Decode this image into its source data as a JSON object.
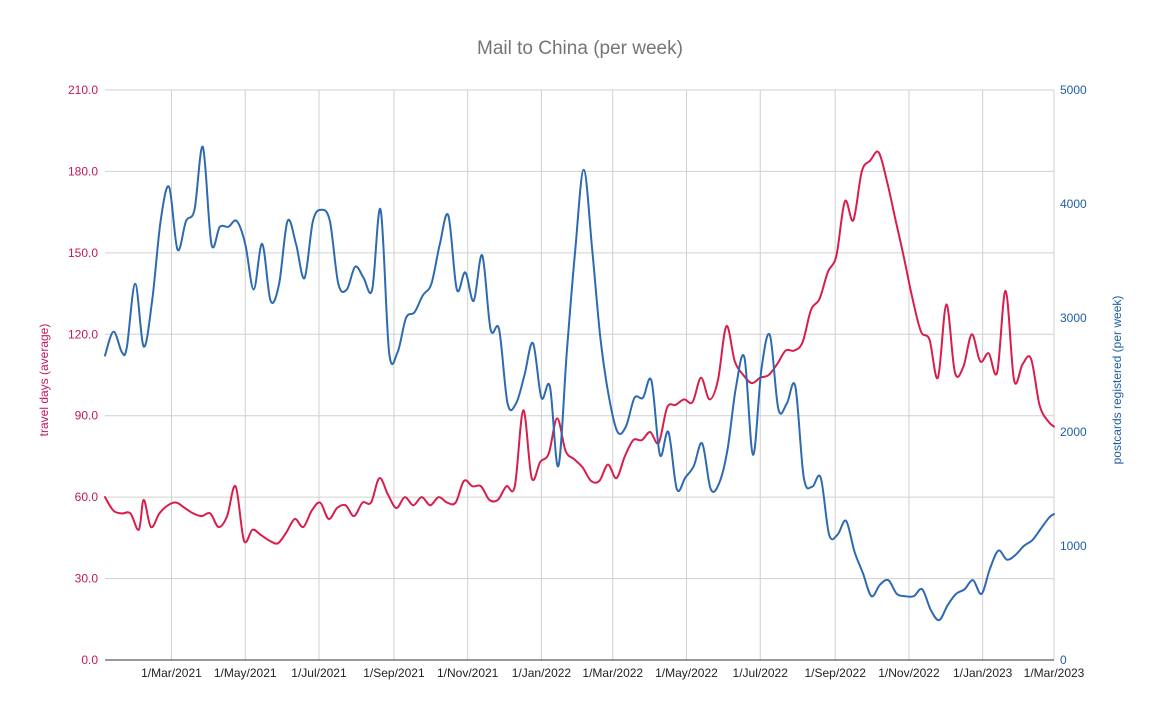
{
  "chart_data": {
    "type": "line",
    "title": "Mail to China (per week)",
    "y_left_label": "travel days (average)",
    "y_right_label": "postcards registered (per week)",
    "y_left_range": [
      0,
      210
    ],
    "y_right_range": [
      0,
      5000
    ],
    "y_left_ticks": [
      "0.0",
      "30.0",
      "60.0",
      "90.0",
      "120.0",
      "150.0",
      "180.0",
      "210.0"
    ],
    "y_right_ticks": [
      "0",
      "1000",
      "2000",
      "3000",
      "4000",
      "5000"
    ],
    "x_ticks": [
      "1/Mar/2021",
      "1/May/2021",
      "1/Jul/2021",
      "1/Sep/2021",
      "1/Nov/2021",
      "1/Jan/2022",
      "1/Mar/2022",
      "1/May/2022",
      "1/Jul/2022",
      "1/Sep/2022",
      "1/Nov/2022",
      "1/Jan/2023",
      "1/Mar/2023"
    ],
    "x_range": [
      "2021-01-05",
      "2023-03-01"
    ],
    "grid": true,
    "legend": "none",
    "colors": {
      "travel_days": "#d81e4c",
      "postcards": "#2e6ab0"
    },
    "series": [
      {
        "axis": "left",
        "color": "#d81e4c",
        "points": [
          [
            "2021-01-05",
            60
          ],
          [
            "2021-01-12",
            55
          ],
          [
            "2021-01-19",
            54
          ],
          [
            "2021-01-26",
            54
          ],
          [
            "2021-02-02",
            48
          ],
          [
            "2021-02-06",
            59
          ],
          [
            "2021-02-12",
            49
          ],
          [
            "2021-02-19",
            54
          ],
          [
            "2021-02-26",
            57
          ],
          [
            "2021-03-05",
            58
          ],
          [
            "2021-03-12",
            56
          ],
          [
            "2021-03-19",
            54
          ],
          [
            "2021-03-26",
            53
          ],
          [
            "2021-04-02",
            54
          ],
          [
            "2021-04-09",
            49
          ],
          [
            "2021-04-16",
            53
          ],
          [
            "2021-04-23",
            64
          ],
          [
            "2021-04-30",
            44
          ],
          [
            "2021-05-07",
            48
          ],
          [
            "2021-05-14",
            46
          ],
          [
            "2021-05-21",
            44
          ],
          [
            "2021-05-28",
            43
          ],
          [
            "2021-06-04",
            47
          ],
          [
            "2021-06-11",
            52
          ],
          [
            "2021-06-18",
            49
          ],
          [
            "2021-06-25",
            55
          ],
          [
            "2021-07-02",
            58
          ],
          [
            "2021-07-09",
            52
          ],
          [
            "2021-07-16",
            56
          ],
          [
            "2021-07-23",
            57
          ],
          [
            "2021-07-30",
            53
          ],
          [
            "2021-08-06",
            58
          ],
          [
            "2021-08-13",
            58
          ],
          [
            "2021-08-20",
            67
          ],
          [
            "2021-08-27",
            61
          ],
          [
            "2021-09-03",
            56
          ],
          [
            "2021-09-10",
            60
          ],
          [
            "2021-09-17",
            57
          ],
          [
            "2021-09-24",
            60
          ],
          [
            "2021-10-01",
            57
          ],
          [
            "2021-10-08",
            60
          ],
          [
            "2021-10-15",
            58
          ],
          [
            "2021-10-22",
            58
          ],
          [
            "2021-10-29",
            66
          ],
          [
            "2021-11-05",
            64
          ],
          [
            "2021-11-12",
            64
          ],
          [
            "2021-11-19",
            59
          ],
          [
            "2021-11-26",
            59
          ],
          [
            "2021-12-03",
            64
          ],
          [
            "2021-12-10",
            64
          ],
          [
            "2021-12-17",
            92
          ],
          [
            "2021-12-24",
            67
          ],
          [
            "2021-12-31",
            73
          ],
          [
            "2022-01-07",
            76
          ],
          [
            "2022-01-14",
            89
          ],
          [
            "2022-01-21",
            77
          ],
          [
            "2022-01-28",
            74
          ],
          [
            "2022-02-04",
            71
          ],
          [
            "2022-02-11",
            66
          ],
          [
            "2022-02-18",
            66
          ],
          [
            "2022-02-25",
            72
          ],
          [
            "2022-03-04",
            67
          ],
          [
            "2022-03-11",
            75
          ],
          [
            "2022-03-18",
            81
          ],
          [
            "2022-03-25",
            81
          ],
          [
            "2022-04-01",
            84
          ],
          [
            "2022-04-08",
            80
          ],
          [
            "2022-04-15",
            93
          ],
          [
            "2022-04-22",
            94
          ],
          [
            "2022-04-29",
            96
          ],
          [
            "2022-05-06",
            95
          ],
          [
            "2022-05-13",
            104
          ],
          [
            "2022-05-20",
            96
          ],
          [
            "2022-05-27",
            103
          ],
          [
            "2022-06-03",
            123
          ],
          [
            "2022-06-10",
            110
          ],
          [
            "2022-06-17",
            105
          ],
          [
            "2022-06-24",
            102
          ],
          [
            "2022-07-01",
            104
          ],
          [
            "2022-07-08",
            105
          ],
          [
            "2022-07-15",
            109
          ],
          [
            "2022-07-22",
            114
          ],
          [
            "2022-07-29",
            114
          ],
          [
            "2022-08-05",
            117
          ],
          [
            "2022-08-12",
            129
          ],
          [
            "2022-08-19",
            133
          ],
          [
            "2022-08-26",
            143
          ],
          [
            "2022-09-02",
            149
          ],
          [
            "2022-09-09",
            169
          ],
          [
            "2022-09-16",
            162
          ],
          [
            "2022-09-23",
            180
          ],
          [
            "2022-09-30",
            184
          ],
          [
            "2022-10-07",
            187
          ],
          [
            "2022-10-14",
            176
          ],
          [
            "2022-10-21",
            162
          ],
          [
            "2022-10-28",
            148
          ],
          [
            "2022-11-04",
            133
          ],
          [
            "2022-11-11",
            121
          ],
          [
            "2022-11-18",
            118
          ],
          [
            "2022-11-25",
            104
          ],
          [
            "2022-12-02",
            131
          ],
          [
            "2022-12-09",
            106
          ],
          [
            "2022-12-16",
            108
          ],
          [
            "2022-12-23",
            120
          ],
          [
            "2022-12-30",
            110
          ],
          [
            "2023-01-06",
            113
          ],
          [
            "2023-01-13",
            106
          ],
          [
            "2023-01-20",
            136
          ],
          [
            "2023-01-27",
            103
          ],
          [
            "2023-02-03",
            109
          ],
          [
            "2023-02-10",
            111
          ],
          [
            "2023-02-17",
            94
          ],
          [
            "2023-02-24",
            88
          ],
          [
            "2023-03-01",
            86
          ]
        ]
      },
      {
        "axis": "right",
        "color": "#2e6ab0",
        "points": [
          [
            "2021-01-05",
            2670
          ],
          [
            "2021-01-12",
            2880
          ],
          [
            "2021-01-19",
            2700
          ],
          [
            "2021-01-23",
            2740
          ],
          [
            "2021-01-30",
            3300
          ],
          [
            "2021-02-06",
            2750
          ],
          [
            "2021-02-13",
            3150
          ],
          [
            "2021-02-20",
            3850
          ],
          [
            "2021-02-27",
            4150
          ],
          [
            "2021-03-06",
            3600
          ],
          [
            "2021-03-13",
            3850
          ],
          [
            "2021-03-20",
            3950
          ],
          [
            "2021-03-27",
            4500
          ],
          [
            "2021-04-03",
            3650
          ],
          [
            "2021-04-10",
            3800
          ],
          [
            "2021-04-17",
            3800
          ],
          [
            "2021-04-24",
            3850
          ],
          [
            "2021-05-01",
            3650
          ],
          [
            "2021-05-08",
            3250
          ],
          [
            "2021-05-15",
            3650
          ],
          [
            "2021-05-22",
            3150
          ],
          [
            "2021-05-29",
            3300
          ],
          [
            "2021-06-05",
            3850
          ],
          [
            "2021-06-12",
            3650
          ],
          [
            "2021-06-19",
            3350
          ],
          [
            "2021-06-26",
            3850
          ],
          [
            "2021-07-03",
            3950
          ],
          [
            "2021-07-10",
            3850
          ],
          [
            "2021-07-17",
            3300
          ],
          [
            "2021-07-24",
            3250
          ],
          [
            "2021-07-31",
            3450
          ],
          [
            "2021-08-07",
            3350
          ],
          [
            "2021-08-14",
            3250
          ],
          [
            "2021-08-21",
            3950
          ],
          [
            "2021-08-28",
            2700
          ],
          [
            "2021-09-04",
            2700
          ],
          [
            "2021-09-11",
            3000
          ],
          [
            "2021-09-18",
            3050
          ],
          [
            "2021-09-25",
            3200
          ],
          [
            "2021-10-02",
            3300
          ],
          [
            "2021-10-09",
            3650
          ],
          [
            "2021-10-16",
            3900
          ],
          [
            "2021-10-23",
            3250
          ],
          [
            "2021-10-30",
            3400
          ],
          [
            "2021-11-06",
            3150
          ],
          [
            "2021-11-13",
            3550
          ],
          [
            "2021-11-20",
            2900
          ],
          [
            "2021-11-27",
            2900
          ],
          [
            "2021-12-04",
            2250
          ],
          [
            "2021-12-11",
            2250
          ],
          [
            "2021-12-18",
            2500
          ],
          [
            "2021-12-25",
            2780
          ],
          [
            "2022-01-01",
            2300
          ],
          [
            "2022-01-08",
            2400
          ],
          [
            "2022-01-15",
            1700
          ],
          [
            "2022-01-22",
            2700
          ],
          [
            "2022-01-29",
            3600
          ],
          [
            "2022-02-05",
            4300
          ],
          [
            "2022-02-12",
            3600
          ],
          [
            "2022-02-19",
            2800
          ],
          [
            "2022-02-26",
            2300
          ],
          [
            "2022-03-05",
            2000
          ],
          [
            "2022-03-12",
            2050
          ],
          [
            "2022-03-19",
            2300
          ],
          [
            "2022-03-26",
            2300
          ],
          [
            "2022-04-02",
            2450
          ],
          [
            "2022-04-09",
            1800
          ],
          [
            "2022-04-16",
            2000
          ],
          [
            "2022-04-23",
            1500
          ],
          [
            "2022-04-30",
            1600
          ],
          [
            "2022-05-07",
            1700
          ],
          [
            "2022-05-14",
            1900
          ],
          [
            "2022-05-21",
            1500
          ],
          [
            "2022-05-28",
            1550
          ],
          [
            "2022-06-04",
            1850
          ],
          [
            "2022-06-11",
            2400
          ],
          [
            "2022-06-18",
            2650
          ],
          [
            "2022-06-25",
            1800
          ],
          [
            "2022-07-02",
            2550
          ],
          [
            "2022-07-09",
            2850
          ],
          [
            "2022-07-16",
            2200
          ],
          [
            "2022-07-23",
            2250
          ],
          [
            "2022-07-30",
            2400
          ],
          [
            "2022-08-06",
            1600
          ],
          [
            "2022-08-13",
            1520
          ],
          [
            "2022-08-20",
            1600
          ],
          [
            "2022-08-27",
            1100
          ],
          [
            "2022-09-03",
            1100
          ],
          [
            "2022-09-10",
            1220
          ],
          [
            "2022-09-17",
            950
          ],
          [
            "2022-09-24",
            760
          ],
          [
            "2022-10-01",
            560
          ],
          [
            "2022-10-08",
            660
          ],
          [
            "2022-10-15",
            700
          ],
          [
            "2022-10-22",
            580
          ],
          [
            "2022-10-29",
            560
          ],
          [
            "2022-11-05",
            560
          ],
          [
            "2022-11-12",
            620
          ],
          [
            "2022-11-19",
            440
          ],
          [
            "2022-11-26",
            350
          ],
          [
            "2022-12-03",
            480
          ],
          [
            "2022-12-10",
            580
          ],
          [
            "2022-12-17",
            620
          ],
          [
            "2022-12-24",
            700
          ],
          [
            "2022-12-31",
            580
          ],
          [
            "2023-01-07",
            800
          ],
          [
            "2023-01-14",
            960
          ],
          [
            "2023-01-21",
            880
          ],
          [
            "2023-01-28",
            920
          ],
          [
            "2023-02-04",
            1000
          ],
          [
            "2023-02-11",
            1050
          ],
          [
            "2023-02-18",
            1150
          ],
          [
            "2023-02-25",
            1250
          ],
          [
            "2023-03-01",
            1280
          ]
        ]
      }
    ]
  }
}
